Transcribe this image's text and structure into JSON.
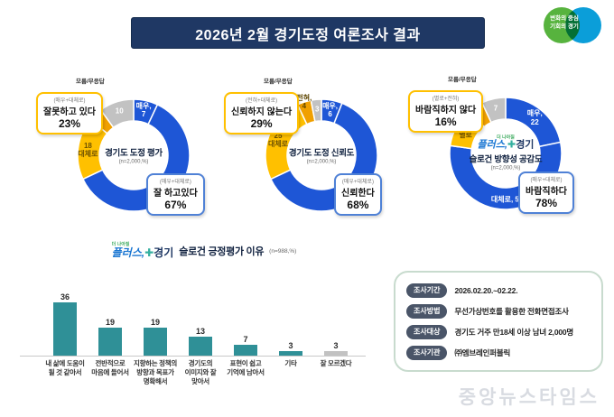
{
  "header": {
    "title": "2026년 2월 경기도정 여론조사 결과"
  },
  "brand_logo": {
    "line1": "변화의 중심",
    "line2": "기회의 경기"
  },
  "slogan_logo": {
    "tagline": "더 나아질",
    "name1": "플러스,",
    "plus_icon": "✚",
    "name2": "경기"
  },
  "colors": {
    "header_navy": "#1f3864",
    "blue": "#1e56d6",
    "yellow": "#ffc000",
    "orange": "#f0a000",
    "gray": "#c2c2c2",
    "teal_bar": "#2f9097",
    "gray_bar": "#c2c2c2",
    "callout_pos_border": "#4f81d6",
    "callout_neg_border": "#ffc000"
  },
  "chart_data": [
    {
      "type": "pie",
      "title": "경기도 도정 평가",
      "subtitle": "(n=2,000,%)",
      "dk_label": "모름/무응답",
      "center_logo": false,
      "segments": [
        {
          "name": "매우",
          "value": 7,
          "color": "#1e56d6",
          "label_lines": [
            "매우,",
            "7"
          ],
          "label_color": "#ffffff"
        },
        {
          "name": "대체로",
          "value": 61,
          "color": "#1e56d6",
          "label_lines": [
            "대체로,",
            "61"
          ],
          "label_color": "#ffffff"
        },
        {
          "name": "대체로",
          "value": 18,
          "color": "#ffc000",
          "label_lines": [
            "18",
            "대체로"
          ],
          "label_color": "#6e5200"
        },
        {
          "name": "매우",
          "value": 4,
          "color": "#f0a000",
          "label_lines": [
            "매우,",
            "4"
          ],
          "label_color": "#5d4500"
        },
        {
          "name": "모름/무응답",
          "value": 10,
          "color": "#c2c2c2",
          "label_lines": [
            "10"
          ],
          "label_color": "#ffffff"
        }
      ],
      "callouts": {
        "negative": {
          "sub": "(매우+대체로)",
          "label": "잘못하고 있다",
          "pct": "23%"
        },
        "positive": {
          "sub": "(매우+대체로)",
          "label": "잘 하고있다",
          "pct": "67%"
        }
      }
    },
    {
      "type": "pie",
      "title": "경기도 도정 신뢰도",
      "subtitle": "(n=2,000,%)",
      "dk_label": "모름/무응답",
      "center_logo": false,
      "segments": [
        {
          "name": "매우",
          "value": 6,
          "color": "#1e56d6",
          "label_lines": [
            "매우,",
            "6"
          ],
          "label_color": "#ffffff"
        },
        {
          "name": "대체로",
          "value": 62,
          "color": "#1e56d6",
          "label_lines": [
            "대체로,",
            "62"
          ],
          "label_color": "#ffffff"
        },
        {
          "name": "대체로",
          "value": 25,
          "color": "#ffc000",
          "label_lines": [
            "25",
            "대체로"
          ],
          "label_color": "#6e5200"
        },
        {
          "name": "전혀",
          "value": 4,
          "color": "#f0a000",
          "label_lines": [
            "전혀,",
            "4"
          ],
          "label_color": "#5d4500"
        },
        {
          "name": "모름/무응답",
          "value": 3,
          "color": "#c2c2c2",
          "label_lines": [
            "3"
          ],
          "label_color": "#ffffff"
        }
      ],
      "callouts": {
        "negative": {
          "sub": "(전혀+대체로)",
          "label": "신뢰하지 않는다",
          "pct": "29%"
        },
        "positive": {
          "sub": "(매우+대체로)",
          "label": "신뢰한다",
          "pct": "68%"
        }
      }
    },
    {
      "type": "pie",
      "title": "슬로건 방향성 공감도",
      "subtitle": "(n=2,000,%)",
      "dk_label": "모름/무응답",
      "center_logo": true,
      "segments": [
        {
          "name": "매우",
          "value": 22,
          "color": "#1e56d6",
          "label_lines": [
            "매우,",
            "22"
          ],
          "label_color": "#ffffff"
        },
        {
          "name": "대체로",
          "value": 56,
          "color": "#1e56d6",
          "label_lines": [
            "대체로, 56"
          ],
          "label_color": "#ffffff"
        },
        {
          "name": "별로",
          "value": 12,
          "color": "#ffc000",
          "label_lines": [
            "12",
            "별로"
          ],
          "label_color": "#6e5200"
        },
        {
          "name": "전혀",
          "value": 4,
          "color": "#f0a000",
          "label_lines": [
            "전혀,",
            "4"
          ],
          "label_color": "#5d4500"
        },
        {
          "name": "모름/무응답",
          "value": 7,
          "color": "#c2c2c2",
          "label_lines": [
            "7"
          ],
          "label_color": "#ffffff"
        }
      ],
      "callouts": {
        "negative": {
          "sub": "(별로+전혀)",
          "label": "바람직하지 않다",
          "pct": "16%"
        },
        "positive": {
          "sub": "(매우+대체로)",
          "label": "바람직하다",
          "pct": "78%"
        }
      }
    },
    {
      "type": "bar",
      "title": "슬로건 긍정평가 이유",
      "subtitle": "(n=988,%)",
      "categories": [
        "내 삶에 도움이\n될 것 같아서",
        "전반적으로\n마음에 들어서",
        "지향하는 정책의\n방향과 목표가\n명확해서",
        "경기도의\n이미지와 잘\n맞아서",
        "표현이 쉽고\n기억에 남아서",
        "기타",
        "잘 모르겠다"
      ],
      "values": [
        36,
        19,
        19,
        13,
        7,
        3,
        3
      ],
      "bar_colors": [
        "#2f9097",
        "#2f9097",
        "#2f9097",
        "#2f9097",
        "#2f9097",
        "#2f9097",
        "#c2c2c2"
      ],
      "ylim": [
        0,
        40
      ],
      "grid": false,
      "legend": "none"
    }
  ],
  "survey_info": {
    "rows": [
      {
        "label": "조사기간",
        "value": "2026.02.20.~02.22."
      },
      {
        "label": "조사방법",
        "value": "무선가상번호를 활용한 전화면접조사"
      },
      {
        "label": "조사대상",
        "value": "경기도 거주 만18세 이상 남녀 2,000명"
      },
      {
        "label": "조사기관",
        "value": "㈜엠브레인퍼블릭"
      }
    ]
  },
  "watermark": {
    "text": "중앙뉴스타임스"
  }
}
